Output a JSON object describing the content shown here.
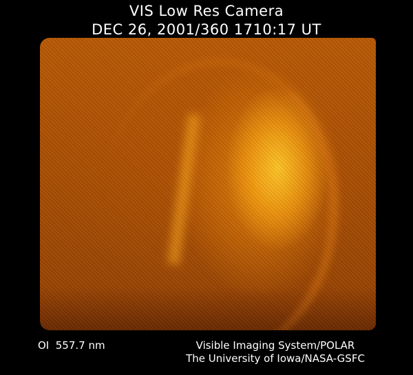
{
  "title": "VIS Low Res Camera",
  "timestamp": "DEC 26, 2001/360 1710:17 UT",
  "wavelength": "OI  557.7 nm",
  "instrument": "Visible Imaging System/POLAR",
  "credit": "The University of Iowa/NASA-GSFC",
  "colors": {
    "background": "#000000",
    "image_tone": "#b85a05",
    "aurora_bright": "#ffc828"
  }
}
